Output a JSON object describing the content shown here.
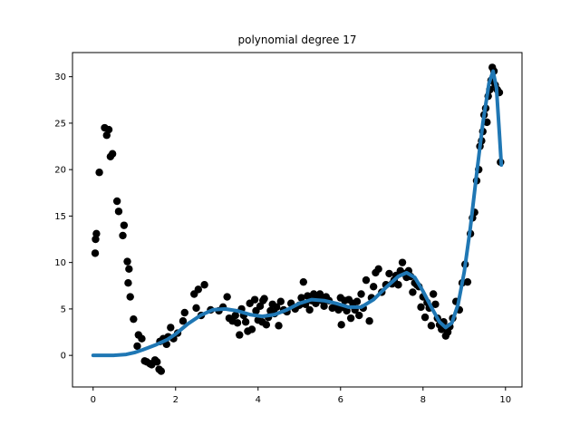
{
  "chart_data": {
    "type": "scatter",
    "title": "polynomial degree 17",
    "xlabel": "",
    "ylabel": "",
    "xlim": [
      -0.5,
      10.4
    ],
    "ylim": [
      -3.4,
      32.6
    ],
    "xticks": [
      0,
      2,
      4,
      6,
      8,
      10
    ],
    "yticks": [
      0,
      5,
      10,
      15,
      20,
      25,
      30
    ],
    "grid": false,
    "legend": "none",
    "colors": {
      "points": "#000000",
      "fit": "#1f77b4"
    },
    "series": [
      {
        "kind": "scatter",
        "points": [
          [
            0.05,
            11.0
          ],
          [
            0.06,
            12.5
          ],
          [
            0.08,
            13.1
          ],
          [
            0.15,
            19.7
          ],
          [
            0.28,
            24.5
          ],
          [
            0.33,
            23.7
          ],
          [
            0.38,
            24.3
          ],
          [
            0.42,
            21.4
          ],
          [
            0.47,
            21.7
          ],
          [
            0.58,
            16.6
          ],
          [
            0.62,
            15.5
          ],
          [
            0.72,
            12.9
          ],
          [
            0.75,
            14.0
          ],
          [
            0.83,
            10.1
          ],
          [
            0.85,
            7.8
          ],
          [
            0.87,
            9.3
          ],
          [
            0.9,
            6.3
          ],
          [
            0.98,
            3.9
          ],
          [
            1.07,
            1.0
          ],
          [
            1.1,
            2.2
          ],
          [
            1.18,
            1.8
          ],
          [
            1.25,
            -0.6
          ],
          [
            1.3,
            -0.7
          ],
          [
            1.38,
            -0.9
          ],
          [
            1.42,
            -1.0
          ],
          [
            1.5,
            -0.5
          ],
          [
            1.55,
            -0.7
          ],
          [
            1.6,
            -1.5
          ],
          [
            1.65,
            -1.7
          ],
          [
            1.62,
            1.5
          ],
          [
            1.7,
            1.8
          ],
          [
            1.78,
            1.2
          ],
          [
            1.82,
            2.0
          ],
          [
            1.88,
            3.0
          ],
          [
            1.95,
            1.8
          ],
          [
            2.05,
            2.4
          ],
          [
            2.18,
            3.7
          ],
          [
            2.22,
            4.6
          ],
          [
            2.45,
            6.6
          ],
          [
            2.5,
            5.1
          ],
          [
            2.55,
            7.1
          ],
          [
            2.62,
            4.3
          ],
          [
            2.7,
            7.6
          ],
          [
            2.85,
            4.9
          ],
          [
            3.05,
            4.8
          ],
          [
            3.15,
            5.2
          ],
          [
            3.25,
            6.3
          ],
          [
            3.3,
            4.0
          ],
          [
            3.38,
            3.7
          ],
          [
            3.45,
            4.3
          ],
          [
            3.5,
            3.5
          ],
          [
            3.55,
            2.2
          ],
          [
            3.6,
            5.0
          ],
          [
            3.65,
            4.3
          ],
          [
            3.7,
            3.6
          ],
          [
            3.75,
            2.6
          ],
          [
            3.8,
            5.6
          ],
          [
            3.85,
            2.8
          ],
          [
            3.92,
            6.0
          ],
          [
            3.95,
            4.8
          ],
          [
            4.0,
            3.8
          ],
          [
            4.05,
            5.3
          ],
          [
            4.1,
            3.6
          ],
          [
            4.12,
            5.9
          ],
          [
            4.15,
            6.1
          ],
          [
            4.2,
            3.3
          ],
          [
            4.25,
            4.1
          ],
          [
            4.3,
            4.8
          ],
          [
            4.35,
            5.5
          ],
          [
            4.4,
            4.5
          ],
          [
            4.45,
            5.2
          ],
          [
            4.5,
            3.2
          ],
          [
            4.55,
            5.8
          ],
          [
            4.62,
            4.9
          ],
          [
            4.7,
            4.7
          ],
          [
            4.8,
            5.6
          ],
          [
            4.9,
            5.0
          ],
          [
            5.0,
            5.4
          ],
          [
            5.05,
            6.2
          ],
          [
            5.1,
            7.9
          ],
          [
            5.15,
            5.5
          ],
          [
            5.2,
            6.4
          ],
          [
            5.25,
            4.9
          ],
          [
            5.3,
            5.9
          ],
          [
            5.35,
            6.6
          ],
          [
            5.4,
            5.6
          ],
          [
            5.45,
            6.2
          ],
          [
            5.5,
            6.6
          ],
          [
            5.55,
            5.9
          ],
          [
            5.6,
            5.3
          ],
          [
            5.65,
            6.3
          ],
          [
            5.72,
            5.9
          ],
          [
            5.8,
            5.1
          ],
          [
            5.88,
            5.3
          ],
          [
            5.95,
            4.9
          ],
          [
            6.0,
            6.2
          ],
          [
            6.02,
            3.3
          ],
          [
            6.05,
            5.2
          ],
          [
            6.1,
            5.9
          ],
          [
            6.15,
            4.8
          ],
          [
            6.2,
            6.0
          ],
          [
            6.25,
            4.0
          ],
          [
            6.3,
            5.6
          ],
          [
            6.35,
            4.9
          ],
          [
            6.4,
            5.8
          ],
          [
            6.45,
            4.3
          ],
          [
            6.5,
            6.6
          ],
          [
            6.55,
            5.1
          ],
          [
            6.62,
            8.1
          ],
          [
            6.7,
            3.7
          ],
          [
            6.75,
            6.2
          ],
          [
            6.8,
            7.4
          ],
          [
            6.85,
            8.9
          ],
          [
            6.92,
            9.3
          ],
          [
            7.0,
            6.8
          ],
          [
            7.1,
            7.6
          ],
          [
            7.18,
            8.8
          ],
          [
            7.25,
            7.7
          ],
          [
            7.3,
            8.1
          ],
          [
            7.35,
            8.6
          ],
          [
            7.4,
            7.6
          ],
          [
            7.45,
            9.1
          ],
          [
            7.5,
            10.0
          ],
          [
            7.55,
            8.8
          ],
          [
            7.6,
            8.4
          ],
          [
            7.65,
            9.1
          ],
          [
            7.7,
            8.5
          ],
          [
            7.75,
            6.8
          ],
          [
            7.8,
            7.8
          ],
          [
            7.85,
            7.6
          ],
          [
            7.9,
            7.4
          ],
          [
            7.95,
            5.2
          ],
          [
            8.0,
            6.3
          ],
          [
            8.05,
            4.1
          ],
          [
            8.1,
            5.7
          ],
          [
            8.15,
            5.1
          ],
          [
            8.2,
            3.2
          ],
          [
            8.25,
            6.6
          ],
          [
            8.3,
            5.5
          ],
          [
            8.35,
            4.0
          ],
          [
            8.4,
            3.3
          ],
          [
            8.45,
            2.8
          ],
          [
            8.5,
            3.6
          ],
          [
            8.55,
            2.1
          ],
          [
            8.6,
            2.5
          ],
          [
            8.65,
            3.1
          ],
          [
            8.72,
            4.0
          ],
          [
            8.8,
            5.8
          ],
          [
            8.88,
            4.9
          ],
          [
            8.95,
            7.8
          ],
          [
            9.02,
            9.8
          ],
          [
            9.08,
            7.9
          ],
          [
            9.15,
            13.1
          ],
          [
            9.2,
            14.8
          ],
          [
            9.25,
            15.4
          ],
          [
            9.3,
            18.8
          ],
          [
            9.35,
            20.0
          ],
          [
            9.38,
            22.5
          ],
          [
            9.42,
            23.1
          ],
          [
            9.45,
            24.1
          ],
          [
            9.48,
            25.9
          ],
          [
            9.52,
            26.6
          ],
          [
            9.55,
            25.1
          ],
          [
            9.58,
            27.9
          ],
          [
            9.62,
            28.6
          ],
          [
            9.65,
            29.6
          ],
          [
            9.68,
            31.0
          ],
          [
            9.72,
            30.6
          ],
          [
            9.75,
            29.1
          ],
          [
            9.8,
            28.6
          ],
          [
            9.85,
            28.3
          ],
          [
            9.88,
            20.8
          ]
        ]
      },
      {
        "kind": "line",
        "points": [
          [
            0.0,
            0.0
          ],
          [
            0.5,
            0.0
          ],
          [
            0.8,
            0.1
          ],
          [
            1.0,
            0.3
          ],
          [
            1.2,
            0.6
          ],
          [
            1.5,
            1.1
          ],
          [
            1.8,
            1.7
          ],
          [
            2.0,
            2.3
          ],
          [
            2.3,
            3.4
          ],
          [
            2.6,
            4.3
          ],
          [
            2.9,
            4.9
          ],
          [
            3.2,
            5.0
          ],
          [
            3.5,
            4.8
          ],
          [
            3.8,
            4.4
          ],
          [
            4.1,
            4.2
          ],
          [
            4.4,
            4.4
          ],
          [
            4.7,
            4.9
          ],
          [
            5.0,
            5.6
          ],
          [
            5.3,
            6.0
          ],
          [
            5.6,
            5.9
          ],
          [
            5.9,
            5.6
          ],
          [
            6.2,
            5.2
          ],
          [
            6.5,
            5.2
          ],
          [
            6.8,
            6.0
          ],
          [
            7.1,
            7.3
          ],
          [
            7.4,
            8.5
          ],
          [
            7.6,
            8.9
          ],
          [
            7.8,
            8.4
          ],
          [
            8.0,
            6.9
          ],
          [
            8.2,
            5.2
          ],
          [
            8.4,
            3.6
          ],
          [
            8.55,
            3.0
          ],
          [
            8.7,
            3.5
          ],
          [
            8.85,
            5.5
          ],
          [
            9.0,
            9.0
          ],
          [
            9.15,
            13.8
          ],
          [
            9.3,
            19.5
          ],
          [
            9.45,
            25.0
          ],
          [
            9.6,
            29.3
          ],
          [
            9.7,
            30.6
          ],
          [
            9.78,
            28.8
          ],
          [
            9.85,
            24.0
          ],
          [
            9.9,
            20.5
          ]
        ]
      }
    ]
  }
}
